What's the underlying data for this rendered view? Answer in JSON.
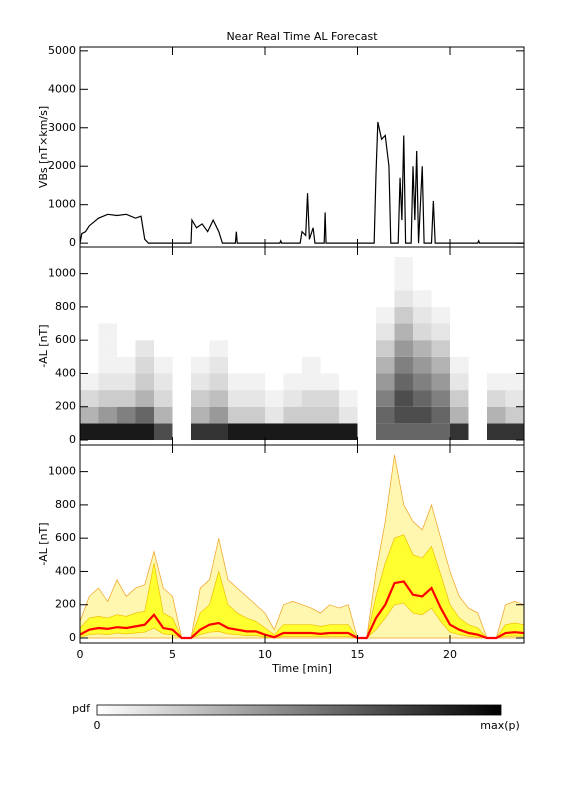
{
  "chart_data": [
    {
      "type": "line",
      "title": "Near Real Time AL Forecast",
      "y_label": "VBs [nT×km/s]",
      "xlim": [
        0,
        24
      ],
      "xticks": [
        0,
        5,
        10,
        15,
        20
      ],
      "ylim": [
        -100,
        5100
      ],
      "yticks": [
        0,
        1000,
        2000,
        3000,
        4000,
        5000
      ],
      "color": "#000000",
      "x": [
        0,
        0.1,
        0.3,
        0.5,
        1,
        1.5,
        2,
        2.5,
        3,
        3.3,
        3.5,
        3.7,
        6,
        6.05,
        6.3,
        6.6,
        6.9,
        7.2,
        7.5,
        7.7,
        8.4,
        8.45,
        8.5,
        10.8,
        10.85,
        10.9,
        11.9,
        12,
        12.2,
        12.3,
        12.4,
        12.6,
        12.7,
        13.2,
        13.25,
        13.3,
        15.9,
        16,
        16.1,
        16.3,
        16.5,
        16.7,
        16.8,
        17.2,
        17.3,
        17.4,
        17.5,
        17.6,
        17.9,
        18,
        18.1,
        18.2,
        18.3,
        18.5,
        18.6,
        19,
        19.1,
        19.2,
        21.5,
        21.55,
        21.6,
        24
      ],
      "values": [
        0,
        250,
        300,
        450,
        650,
        750,
        720,
        750,
        650,
        700,
        100,
        0,
        0,
        600,
        400,
        500,
        300,
        600,
        300,
        0,
        0,
        300,
        0,
        0,
        60,
        0,
        0,
        300,
        200,
        1300,
        100,
        400,
        0,
        0,
        800,
        0,
        0,
        1800,
        3150,
        2700,
        2800,
        2000,
        0,
        0,
        1700,
        600,
        2800,
        0,
        0,
        2000,
        600,
        2400,
        0,
        2000,
        0,
        0,
        1100,
        0,
        0,
        60,
        0,
        0
      ]
    },
    {
      "type": "heatmap",
      "y_label": "-AL [nT]",
      "xlim": [
        0,
        24
      ],
      "xticks": [
        0,
        5,
        10,
        15,
        20
      ],
      "ylim": [
        -30,
        1160
      ],
      "yticks": [
        0,
        200,
        400,
        600,
        800,
        1000
      ],
      "x_bins": [
        0,
        1,
        2,
        3,
        4,
        5,
        6,
        7,
        8,
        9,
        10,
        11,
        12,
        13,
        14,
        15,
        16,
        17,
        18,
        19,
        20,
        21,
        22,
        23,
        24
      ],
      "y_bins": [
        0,
        100,
        200,
        300,
        400,
        500,
        600,
        700,
        800,
        900,
        1000,
        1100
      ],
      "z": [
        [
          0.9,
          0.9,
          0.9,
          0.9,
          0.7,
          0,
          0.8,
          0.8,
          0.9,
          0.9,
          0.9,
          0.9,
          0.9,
          0.9,
          0.9,
          0,
          0.6,
          0.6,
          0.6,
          0.6,
          0.8,
          0,
          0.8,
          0.8
        ],
        [
          0.3,
          0.4,
          0.5,
          0.6,
          0.3,
          0,
          0.3,
          0.4,
          0.2,
          0.2,
          0.1,
          0.2,
          0.2,
          0.2,
          0.1,
          0,
          0.6,
          0.7,
          0.7,
          0.6,
          0.3,
          0,
          0.3,
          0.2
        ],
        [
          0.15,
          0.2,
          0.2,
          0.3,
          0.15,
          0,
          0.2,
          0.25,
          0.1,
          0.1,
          0.05,
          0.1,
          0.15,
          0.15,
          0.05,
          0,
          0.5,
          0.7,
          0.6,
          0.5,
          0.2,
          0,
          0.15,
          0.1
        ],
        [
          0.05,
          0.1,
          0.1,
          0.2,
          0.1,
          0,
          0.1,
          0.15,
          0.05,
          0.05,
          0,
          0.05,
          0.05,
          0.05,
          0,
          0,
          0.4,
          0.6,
          0.5,
          0.4,
          0.1,
          0,
          0.05,
          0.05
        ],
        [
          0,
          0.05,
          0.05,
          0.15,
          0.05,
          0,
          0.05,
          0.1,
          0,
          0,
          0,
          0,
          0.05,
          0,
          0,
          0,
          0.3,
          0.5,
          0.4,
          0.3,
          0.05,
          0,
          0,
          0
        ],
        [
          0,
          0.05,
          0,
          0.1,
          0,
          0,
          0,
          0.05,
          0,
          0,
          0,
          0,
          0,
          0,
          0,
          0,
          0.2,
          0.4,
          0.3,
          0.2,
          0,
          0,
          0,
          0
        ],
        [
          0,
          0.05,
          0,
          0,
          0,
          0,
          0,
          0,
          0,
          0,
          0,
          0,
          0,
          0,
          0,
          0,
          0.1,
          0.3,
          0.15,
          0.1,
          0,
          0,
          0,
          0
        ],
        [
          0,
          0,
          0,
          0,
          0,
          0,
          0,
          0,
          0,
          0,
          0,
          0,
          0,
          0,
          0,
          0,
          0.05,
          0.2,
          0.1,
          0.05,
          0,
          0,
          0,
          0
        ],
        [
          0,
          0,
          0,
          0,
          0,
          0,
          0,
          0,
          0,
          0,
          0,
          0,
          0,
          0,
          0,
          0,
          0,
          0.1,
          0.05,
          0,
          0,
          0,
          0,
          0
        ],
        [
          0,
          0,
          0,
          0,
          0,
          0,
          0,
          0,
          0,
          0,
          0,
          0,
          0,
          0,
          0,
          0,
          0,
          0.05,
          0,
          0,
          0,
          0,
          0,
          0
        ],
        [
          0,
          0,
          0,
          0,
          0,
          0,
          0,
          0,
          0,
          0,
          0,
          0,
          0,
          0,
          0,
          0,
          0,
          0.05,
          0,
          0,
          0,
          0,
          0,
          0
        ]
      ]
    },
    {
      "type": "band",
      "y_label": "-AL [nT]",
      "x_label": "Time [min]",
      "xlim": [
        0,
        24
      ],
      "xticks": [
        0,
        5,
        10,
        15,
        20
      ],
      "ylim": [
        -30,
        1160
      ],
      "yticks": [
        0,
        200,
        400,
        600,
        800,
        1000
      ],
      "x": [
        0,
        0.5,
        1,
        1.5,
        2,
        2.5,
        3,
        3.5,
        4,
        4.5,
        5,
        5.5,
        6,
        6.5,
        7,
        7.5,
        8,
        8.5,
        9,
        9.5,
        10,
        10.5,
        11,
        11.5,
        12,
        12.5,
        13,
        13.5,
        14,
        14.5,
        15,
        15.5,
        16,
        16.5,
        17,
        17.5,
        18,
        18.5,
        19,
        19.5,
        20,
        20.5,
        21,
        21.5,
        22,
        22.5,
        23,
        23.5,
        24
      ],
      "bands": [
        {
          "color": "#fff6b0",
          "edge": "#f0a020",
          "lower": [
            0,
            0,
            0,
            0,
            0,
            0,
            0,
            0,
            0,
            0,
            0,
            0,
            0,
            0,
            0,
            0,
            0,
            0,
            0,
            0,
            0,
            0,
            0,
            0,
            0,
            0,
            0,
            0,
            0,
            0,
            0,
            0,
            0,
            0,
            0,
            0,
            0,
            0,
            0,
            0,
            0,
            0,
            0,
            0,
            0,
            0,
            0,
            0,
            0
          ],
          "upper": [
            100,
            250,
            300,
            220,
            350,
            250,
            300,
            320,
            520,
            300,
            250,
            0,
            0,
            300,
            350,
            600,
            350,
            300,
            250,
            200,
            150,
            50,
            200,
            220,
            200,
            180,
            150,
            200,
            180,
            200,
            0,
            0,
            400,
            700,
            1100,
            800,
            700,
            650,
            800,
            600,
            400,
            250,
            180,
            150,
            0,
            0,
            200,
            220,
            200
          ]
        },
        {
          "color": "#ffff30",
          "edge": "#f0c000",
          "lower": [
            5,
            20,
            25,
            20,
            30,
            25,
            30,
            35,
            60,
            25,
            20,
            0,
            0,
            20,
            35,
            40,
            25,
            20,
            15,
            15,
            5,
            0,
            10,
            10,
            10,
            10,
            8,
            10,
            10,
            10,
            0,
            0,
            50,
            120,
            200,
            210,
            150,
            140,
            180,
            100,
            35,
            20,
            10,
            5,
            0,
            0,
            10,
            12,
            10
          ],
          "upper": [
            60,
            120,
            130,
            120,
            140,
            130,
            150,
            160,
            450,
            150,
            120,
            0,
            0,
            150,
            200,
            400,
            200,
            150,
            120,
            100,
            60,
            20,
            80,
            80,
            80,
            80,
            70,
            80,
            80,
            80,
            0,
            0,
            250,
            450,
            600,
            620,
            500,
            480,
            550,
            380,
            200,
            120,
            80,
            60,
            0,
            0,
            80,
            90,
            80
          ]
        }
      ],
      "series": [
        {
          "color": "#ff0000",
          "values": [
            20,
            50,
            60,
            55,
            65,
            60,
            70,
            80,
            140,
            60,
            50,
            0,
            0,
            50,
            80,
            90,
            60,
            50,
            40,
            40,
            20,
            5,
            30,
            30,
            30,
            30,
            25,
            30,
            30,
            30,
            0,
            0,
            120,
            200,
            330,
            340,
            260,
            250,
            300,
            180,
            80,
            50,
            30,
            20,
            0,
            0,
            30,
            35,
            30
          ]
        }
      ]
    }
  ],
  "colorbar": {
    "label": "pdf",
    "min_label": "0",
    "max_label": "max(p)"
  }
}
